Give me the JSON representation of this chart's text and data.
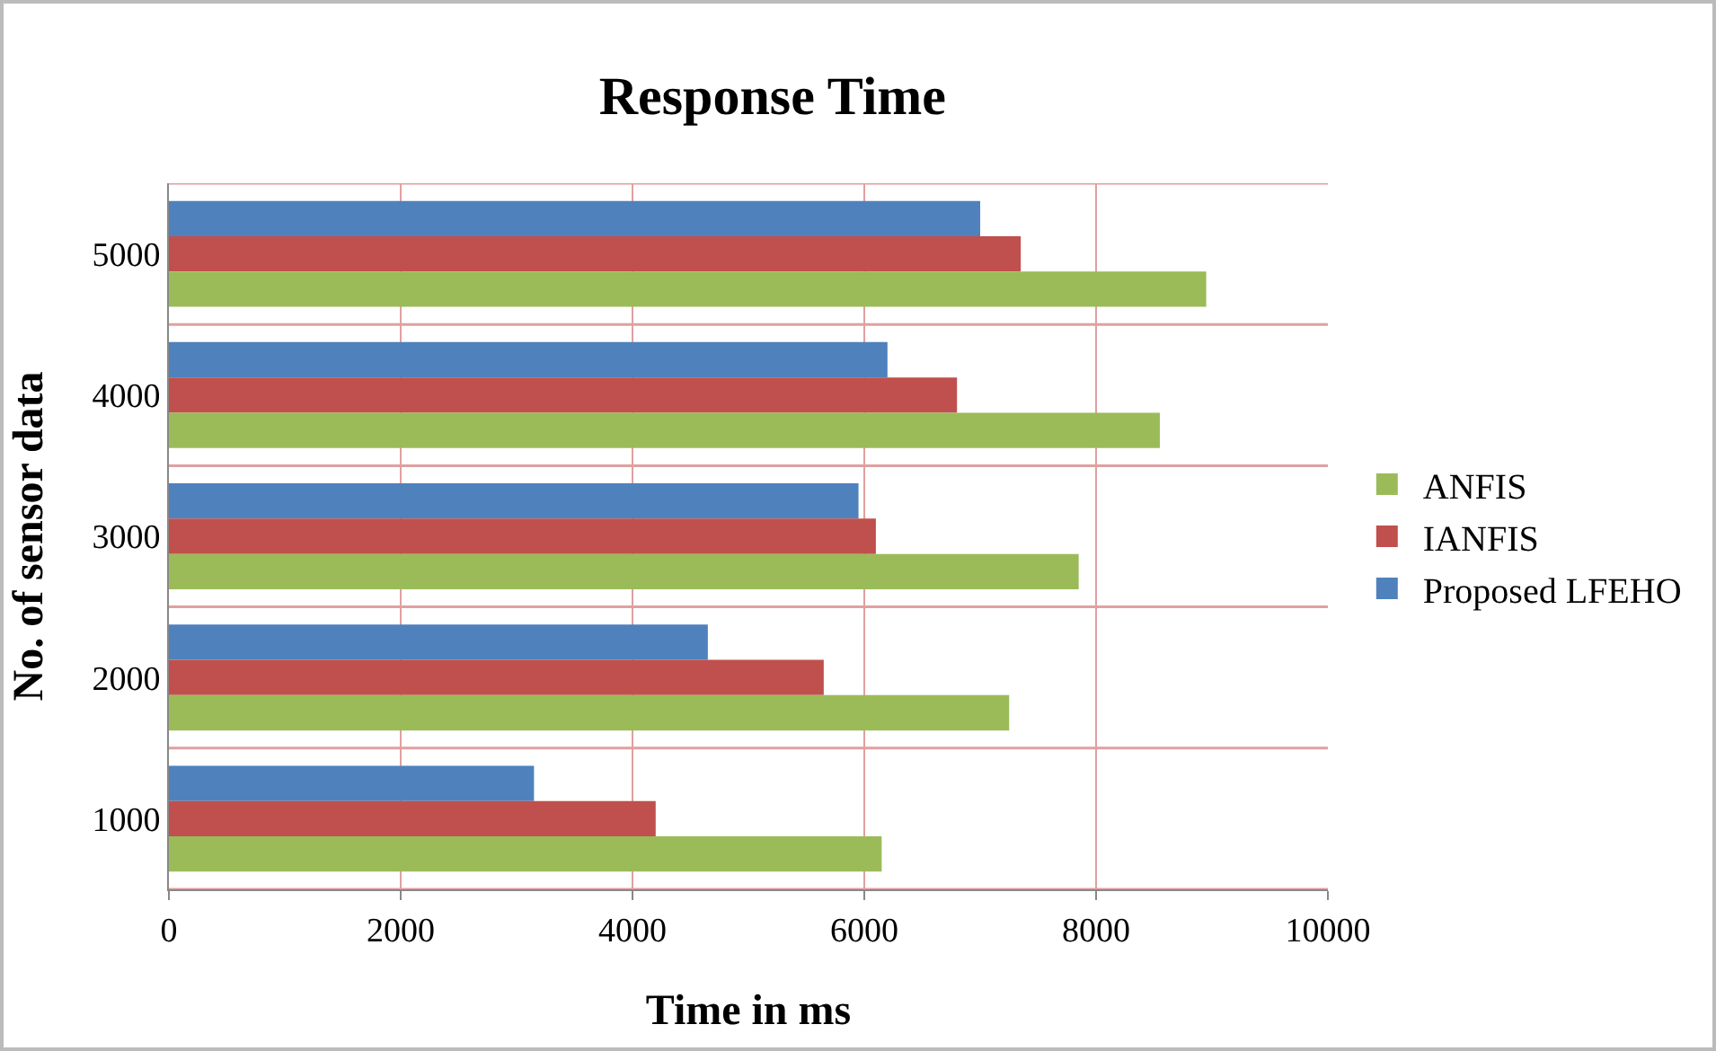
{
  "chart_data": {
    "type": "bar",
    "orientation": "horizontal",
    "title": "Response Time",
    "xlabel": "Time in ms",
    "ylabel": "No. of sensor data",
    "categories": [
      "5000",
      "4000",
      "3000",
      "2000",
      "1000"
    ],
    "series": [
      {
        "name": "Proposed LFEHO",
        "color": "#4f81bd",
        "values": [
          7000,
          6200,
          5950,
          4650,
          3150
        ]
      },
      {
        "name": "IANFIS",
        "color": "#c0504d",
        "values": [
          7350,
          6800,
          6100,
          5650,
          4200
        ]
      },
      {
        "name": "ANFIS",
        "color": "#9bbb59",
        "values": [
          8950,
          8550,
          7850,
          7250,
          6150
        ]
      }
    ],
    "xlim": [
      0,
      10000
    ],
    "xticks": [
      0,
      2000,
      4000,
      6000,
      8000,
      10000
    ],
    "grid": true,
    "legend": "right"
  }
}
